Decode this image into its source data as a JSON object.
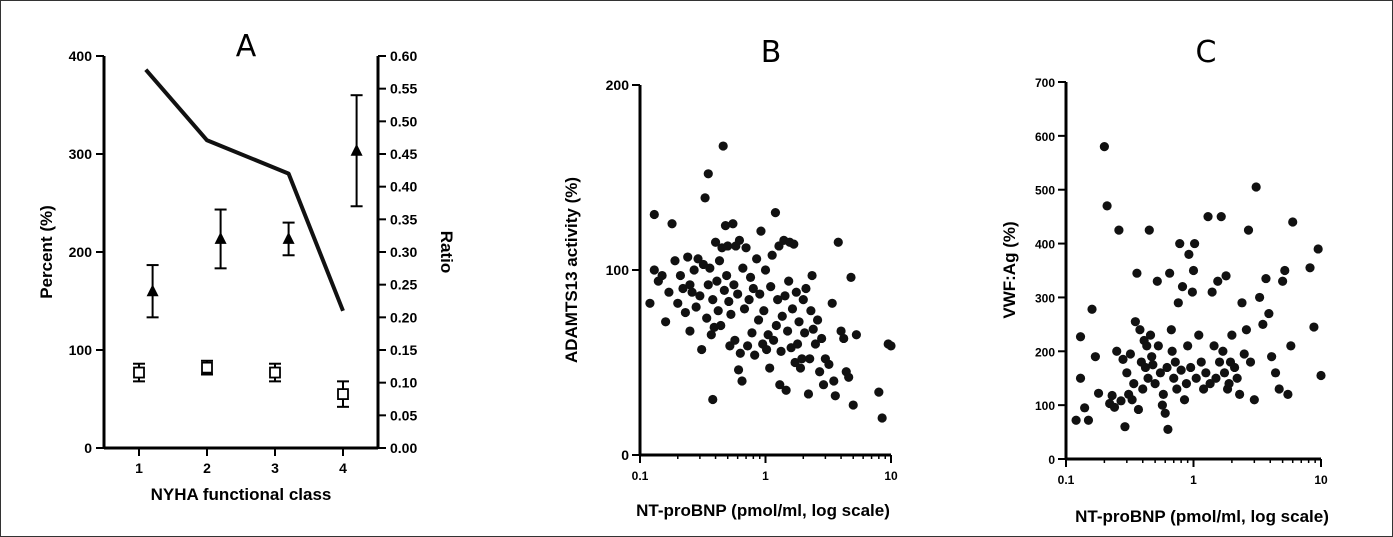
{
  "chart_data": [
    {
      "panel": "A",
      "type": "line",
      "xlabel": "NYHA functional class",
      "ylabel": "Percent (%)",
      "y2label": "Ratio",
      "categories": [
        "1",
        "2",
        "3",
        "4"
      ],
      "ylim": [
        0,
        400
      ],
      "yticks": [
        0,
        100,
        200,
        300,
        400
      ],
      "y2lim": [
        0,
        0.6
      ],
      "y2ticks": [
        "0.00",
        "0.05",
        "0.10",
        "0.15",
        "0.20",
        "0.25",
        "0.30",
        "0.35",
        "0.40",
        "0.45",
        "0.50",
        "0.55",
        "0.60"
      ],
      "series": [
        {
          "marker": "line",
          "axis": "left",
          "x": [
            1.1,
            2,
            3.2,
            4
          ],
          "values": [
            386,
            314,
            280,
            140
          ]
        },
        {
          "marker": "open-square",
          "axis": "left",
          "x": [
            1,
            2,
            3,
            4
          ],
          "values": [
            77,
            82,
            77,
            55
          ],
          "err": [
            9,
            7,
            9,
            13
          ]
        },
        {
          "marker": "filled-triangle",
          "axis": "right",
          "x": [
            1.2,
            2.2,
            3.2,
            4.2
          ],
          "values": [
            0.24,
            0.32,
            0.32,
            0.455
          ],
          "err": [
            0.04,
            0.045,
            0.025,
            0.085
          ]
        }
      ],
      "grid": false
    },
    {
      "panel": "B",
      "type": "scatter",
      "xlabel": "NT-proBNP (pmol/ml, log scale)",
      "ylabel": "ADAMTS13 activity (%)",
      "xscale": "log",
      "xlim": [
        0.1,
        10
      ],
      "xticks": [
        "0.1",
        "1",
        "10"
      ],
      "ylim": [
        0,
        200
      ],
      "yticks": [
        "0",
        "100",
        "200"
      ],
      "points": [
        [
          0.12,
          82
        ],
        [
          0.13,
          100
        ],
        [
          0.13,
          130
        ],
        [
          0.14,
          94
        ],
        [
          0.15,
          97
        ],
        [
          0.16,
          72
        ],
        [
          0.17,
          88
        ],
        [
          0.18,
          125
        ],
        [
          0.19,
          105
        ],
        [
          0.2,
          82
        ],
        [
          0.21,
          97
        ],
        [
          0.22,
          90
        ],
        [
          0.23,
          77
        ],
        [
          0.24,
          107
        ],
        [
          0.25,
          92
        ],
        [
          0.25,
          67
        ],
        [
          0.26,
          88
        ],
        [
          0.27,
          100
        ],
        [
          0.28,
          80
        ],
        [
          0.29,
          106
        ],
        [
          0.3,
          86
        ],
        [
          0.31,
          57
        ],
        [
          0.32,
          103
        ],
        [
          0.33,
          139
        ],
        [
          0.34,
          74
        ],
        [
          0.35,
          152
        ],
        [
          0.35,
          92
        ],
        [
          0.36,
          101
        ],
        [
          0.37,
          65
        ],
        [
          0.38,
          84
        ],
        [
          0.38,
          30
        ],
        [
          0.39,
          69
        ],
        [
          0.4,
          115
        ],
        [
          0.41,
          94
        ],
        [
          0.42,
          78
        ],
        [
          0.43,
          105
        ],
        [
          0.44,
          70
        ],
        [
          0.45,
          112
        ],
        [
          0.46,
          167
        ],
        [
          0.47,
          89
        ],
        [
          0.48,
          124
        ],
        [
          0.49,
          97
        ],
        [
          0.5,
          113
        ],
        [
          0.51,
          83
        ],
        [
          0.52,
          59
        ],
        [
          0.53,
          76
        ],
        [
          0.55,
          125
        ],
        [
          0.56,
          92
        ],
        [
          0.57,
          62
        ],
        [
          0.58,
          113
        ],
        [
          0.6,
          87
        ],
        [
          0.61,
          46
        ],
        [
          0.62,
          116
        ],
        [
          0.63,
          55
        ],
        [
          0.65,
          40
        ],
        [
          0.66,
          101
        ],
        [
          0.68,
          79
        ],
        [
          0.7,
          112
        ],
        [
          0.72,
          59
        ],
        [
          0.74,
          84
        ],
        [
          0.76,
          96
        ],
        [
          0.78,
          66
        ],
        [
          0.8,
          90
        ],
        [
          0.82,
          54
        ],
        [
          0.85,
          106
        ],
        [
          0.88,
          73
        ],
        [
          0.9,
          87
        ],
        [
          0.92,
          121
        ],
        [
          0.95,
          60
        ],
        [
          0.97,
          78
        ],
        [
          1.0,
          100
        ],
        [
          1.02,
          57
        ],
        [
          1.05,
          65
        ],
        [
          1.08,
          47
        ],
        [
          1.1,
          91
        ],
        [
          1.13,
          108
        ],
        [
          1.16,
          62
        ],
        [
          1.2,
          131
        ],
        [
          1.22,
          70
        ],
        [
          1.25,
          84
        ],
        [
          1.28,
          113
        ],
        [
          1.3,
          38
        ],
        [
          1.33,
          56
        ],
        [
          1.36,
          75
        ],
        [
          1.4,
          116
        ],
        [
          1.43,
          86
        ],
        [
          1.46,
          35
        ],
        [
          1.5,
          67
        ],
        [
          1.53,
          94
        ],
        [
          1.56,
          115
        ],
        [
          1.6,
          58
        ],
        [
          1.64,
          79
        ],
        [
          1.68,
          114
        ],
        [
          1.72,
          50
        ],
        [
          1.76,
          88
        ],
        [
          1.8,
          60
        ],
        [
          1.85,
          72
        ],
        [
          1.9,
          47
        ],
        [
          1.95,
          52
        ],
        [
          2.0,
          84
        ],
        [
          2.05,
          66
        ],
        [
          2.1,
          90
        ],
        [
          2.2,
          33
        ],
        [
          2.25,
          52
        ],
        [
          2.3,
          78
        ],
        [
          2.35,
          97
        ],
        [
          2.4,
          68
        ],
        [
          2.5,
          60
        ],
        [
          2.6,
          73
        ],
        [
          2.7,
          45
        ],
        [
          2.8,
          63
        ],
        [
          2.9,
          38
        ],
        [
          3.0,
          52
        ],
        [
          3.2,
          49
        ],
        [
          3.4,
          82
        ],
        [
          3.5,
          40
        ],
        [
          3.6,
          32
        ],
        [
          3.8,
          115
        ],
        [
          4.0,
          67
        ],
        [
          4.2,
          63
        ],
        [
          4.4,
          45
        ],
        [
          4.6,
          42
        ],
        [
          4.8,
          96
        ],
        [
          5.0,
          27
        ],
        [
          5.3,
          65
        ],
        [
          8.0,
          34
        ],
        [
          8.5,
          20
        ],
        [
          9.5,
          60
        ],
        [
          10.0,
          59
        ]
      ],
      "grid": false
    },
    {
      "panel": "C",
      "type": "scatter",
      "xlabel": "NT-proBNP (pmol/ml, log scale)",
      "ylabel": "VWF:Ag (%)",
      "xscale": "log",
      "xlim": [
        0.1,
        10
      ],
      "xticks": [
        "0.1",
        "1",
        "10"
      ],
      "ylim": [
        0,
        700
      ],
      "yticks": [
        "0",
        "100",
        "200",
        "300",
        "400",
        "500",
        "600",
        "700"
      ],
      "points": [
        [
          0.12,
          72
        ],
        [
          0.13,
          150
        ],
        [
          0.13,
          227
        ],
        [
          0.14,
          95
        ],
        [
          0.15,
          72
        ],
        [
          0.16,
          278
        ],
        [
          0.17,
          190
        ],
        [
          0.18,
          122
        ],
        [
          0.2,
          580
        ],
        [
          0.21,
          470
        ],
        [
          0.22,
          103
        ],
        [
          0.23,
          118
        ],
        [
          0.24,
          96
        ],
        [
          0.25,
          200
        ],
        [
          0.26,
          425
        ],
        [
          0.27,
          108
        ],
        [
          0.28,
          185
        ],
        [
          0.29,
          60
        ],
        [
          0.3,
          160
        ],
        [
          0.31,
          120
        ],
        [
          0.32,
          195
        ],
        [
          0.33,
          110
        ],
        [
          0.34,
          140
        ],
        [
          0.35,
          255
        ],
        [
          0.36,
          345
        ],
        [
          0.37,
          92
        ],
        [
          0.38,
          240
        ],
        [
          0.39,
          180
        ],
        [
          0.4,
          130
        ],
        [
          0.41,
          220
        ],
        [
          0.42,
          170
        ],
        [
          0.43,
          210
        ],
        [
          0.44,
          150
        ],
        [
          0.45,
          425
        ],
        [
          0.46,
          230
        ],
        [
          0.47,
          190
        ],
        [
          0.48,
          175
        ],
        [
          0.5,
          140
        ],
        [
          0.52,
          330
        ],
        [
          0.53,
          210
        ],
        [
          0.55,
          160
        ],
        [
          0.57,
          100
        ],
        [
          0.58,
          120
        ],
        [
          0.6,
          85
        ],
        [
          0.62,
          170
        ],
        [
          0.63,
          55
        ],
        [
          0.65,
          345
        ],
        [
          0.67,
          240
        ],
        [
          0.68,
          200
        ],
        [
          0.7,
          150
        ],
        [
          0.72,
          180
        ],
        [
          0.74,
          130
        ],
        [
          0.76,
          290
        ],
        [
          0.78,
          400
        ],
        [
          0.8,
          165
        ],
        [
          0.82,
          320
        ],
        [
          0.85,
          110
        ],
        [
          0.88,
          140
        ],
        [
          0.9,
          210
        ],
        [
          0.92,
          380
        ],
        [
          0.95,
          170
        ],
        [
          0.98,
          310
        ],
        [
          1.0,
          350
        ],
        [
          1.02,
          400
        ],
        [
          1.05,
          150
        ],
        [
          1.1,
          230
        ],
        [
          1.15,
          180
        ],
        [
          1.2,
          130
        ],
        [
          1.25,
          160
        ],
        [
          1.3,
          450
        ],
        [
          1.35,
          140
        ],
        [
          1.4,
          310
        ],
        [
          1.45,
          210
        ],
        [
          1.5,
          150
        ],
        [
          1.55,
          330
        ],
        [
          1.6,
          180
        ],
        [
          1.65,
          450
        ],
        [
          1.7,
          200
        ],
        [
          1.75,
          160
        ],
        [
          1.8,
          340
        ],
        [
          1.85,
          130
        ],
        [
          1.9,
          140
        ],
        [
          1.95,
          180
        ],
        [
          2.0,
          230
        ],
        [
          2.1,
          170
        ],
        [
          2.2,
          150
        ],
        [
          2.3,
          120
        ],
        [
          2.4,
          290
        ],
        [
          2.5,
          195
        ],
        [
          2.6,
          240
        ],
        [
          2.7,
          425
        ],
        [
          2.8,
          180
        ],
        [
          3.0,
          110
        ],
        [
          3.1,
          505
        ],
        [
          3.3,
          300
        ],
        [
          3.5,
          250
        ],
        [
          3.7,
          335
        ],
        [
          3.9,
          270
        ],
        [
          4.1,
          190
        ],
        [
          4.4,
          160
        ],
        [
          4.7,
          130
        ],
        [
          5.0,
          330
        ],
        [
          5.2,
          350
        ],
        [
          5.5,
          120
        ],
        [
          5.8,
          210
        ],
        [
          6.0,
          440
        ],
        [
          8.2,
          355
        ],
        [
          8.8,
          245
        ],
        [
          9.5,
          390
        ],
        [
          10.0,
          155
        ]
      ],
      "grid": false
    }
  ]
}
